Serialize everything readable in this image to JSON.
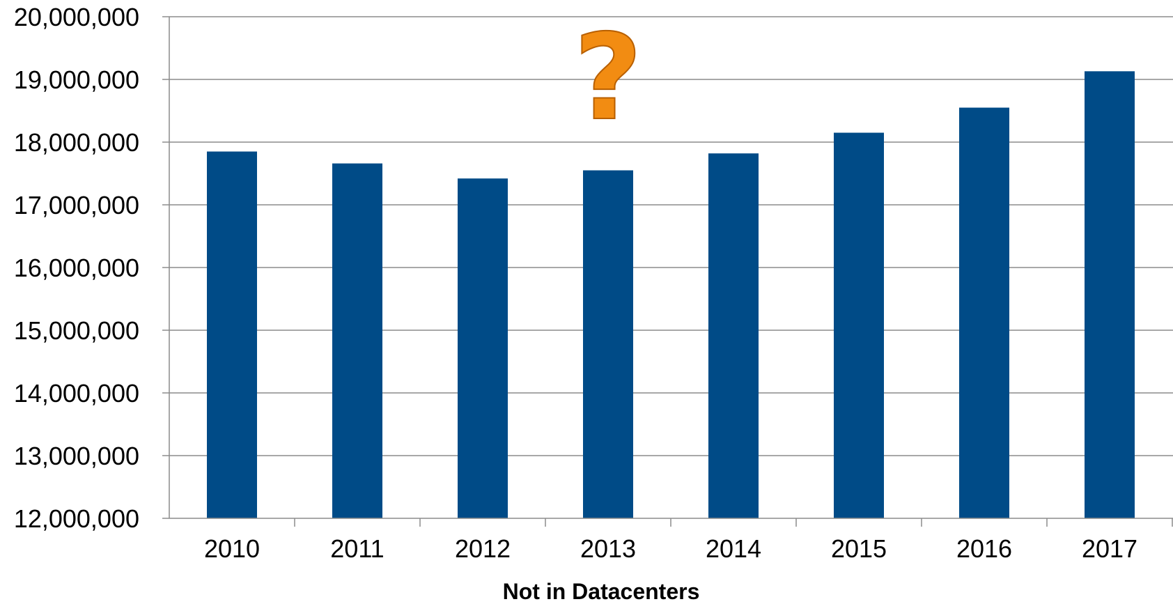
{
  "chart_data": {
    "type": "bar",
    "title": "",
    "xlabel": "Not in Datacenters",
    "ylabel": "",
    "categories": [
      "2010",
      "2011",
      "2012",
      "2013",
      "2014",
      "2015",
      "2016",
      "2017"
    ],
    "values": [
      17850000,
      17660000,
      17420000,
      17550000,
      17820000,
      18150000,
      18550000,
      19130000
    ],
    "ylim": [
      12000000,
      20000000
    ],
    "yticks": [
      12000000,
      13000000,
      14000000,
      15000000,
      16000000,
      17000000,
      18000000,
      19000000,
      20000000
    ],
    "ytick_labels": [
      "12,000,000",
      "13,000,000",
      "14,000,000",
      "15,000,000",
      "16,000,000",
      "17,000,000",
      "18,000,000",
      "19,000,000",
      "20,000,000"
    ],
    "grid": true,
    "legend": "none",
    "bar_color": "#004B87",
    "gridline_color": "#8C8C8C",
    "annotation": {
      "icon": "question-mark-icon",
      "color": "#F28C12",
      "outline_color": "#B85F00",
      "category": "2013"
    }
  }
}
